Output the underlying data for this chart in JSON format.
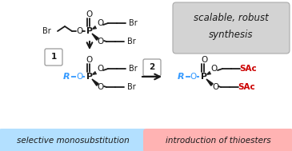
{
  "bg_color": "#ffffff",
  "top_label_box_color": "#d3d3d3",
  "top_label_text": "scalable, robust\nsynthesis",
  "bottom_left_box_color": "#b3e0ff",
  "bottom_left_text": "selective monosubstitution",
  "bottom_right_box_color": "#ffb3b3",
  "bottom_right_text": "introduction of thioesters",
  "black": "#1a1a1a",
  "blue": "#3399ff",
  "red": "#cc0000",
  "chain_color": "#1a1a1a"
}
